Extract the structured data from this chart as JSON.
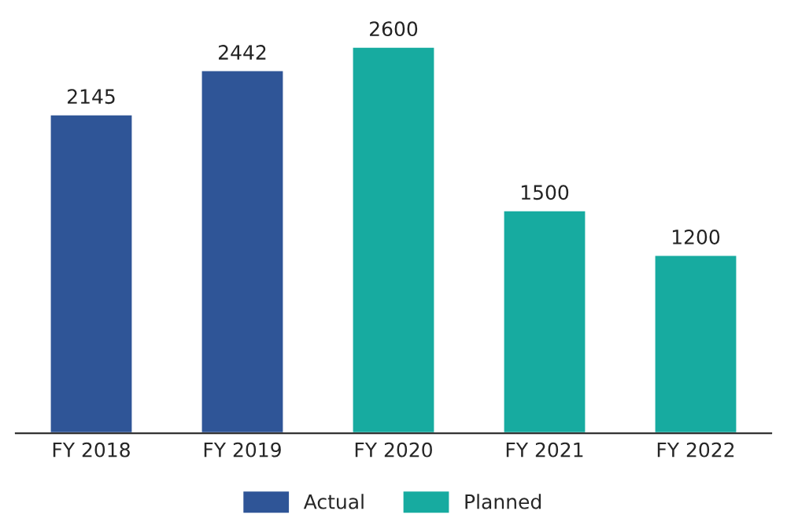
{
  "chart_data": {
    "type": "bar",
    "stacked": true,
    "data_labels": true,
    "legend": "bottom",
    "grid": false,
    "categories": [
      "FY 2018",
      "FY 2019",
      "FY 2020",
      "FY 2021",
      "FY 2022"
    ],
    "series": [
      {
        "name": "Actual",
        "color": "#2f5597",
        "values": [
          2145,
          2442,
          null,
          null,
          null
        ]
      },
      {
        "name": "Planned",
        "color": "#17aba0",
        "values": [
          null,
          null,
          2600,
          1500,
          1200
        ]
      }
    ]
  }
}
